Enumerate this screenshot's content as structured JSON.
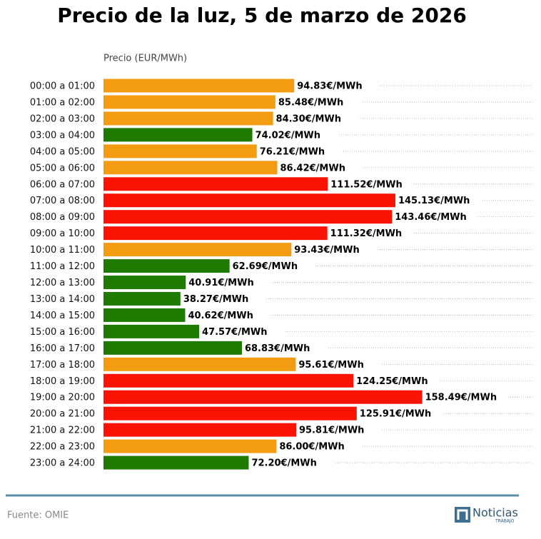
{
  "chart_data": {
    "type": "bar",
    "orientation": "horizontal",
    "title": "Precio de la luz, 5 de marzo de 2026",
    "x_label": "Precio (EUR/MWh)",
    "categories": [
      "00:00 a 01:00",
      "01:00 a 02:00",
      "02:00 a 03:00",
      "03:00 a 04:00",
      "04:00 a 05:00",
      "05:00 a 06:00",
      "06:00 a 07:00",
      "07:00 a 08:00",
      "08:00 a 09:00",
      "09:00 a 10:00",
      "10:00 a 11:00",
      "11:00 a 12:00",
      "12:00 a 13:00",
      "13:00 a 14:00",
      "14:00 a 15:00",
      "15:00 a 16:00",
      "16:00 a 17:00",
      "17:00 a 18:00",
      "18:00 a 19:00",
      "19:00 a 20:00",
      "20:00 a 21:00",
      "21:00 a 22:00",
      "22:00 a 23:00",
      "23:00 a 24:00"
    ],
    "values": [
      94.83,
      85.48,
      84.3,
      74.02,
      76.21,
      86.42,
      111.52,
      145.13,
      143.46,
      111.32,
      93.43,
      62.69,
      40.91,
      38.27,
      40.62,
      47.57,
      68.83,
      95.61,
      124.25,
      158.49,
      125.91,
      95.81,
      86.0,
      72.2
    ],
    "value_labels": [
      "94.83€/MWh",
      "85.48€/MWh",
      "84.30€/MWh",
      "74.02€/MWh",
      "76.21€/MWh",
      "86.42€/MWh",
      "111.52€/MWh",
      "145.13€/MWh",
      "143.46€/MWh",
      "111.32€/MWh",
      "93.43€/MWh",
      "62.69€/MWh",
      "40.91€/MWh",
      "38.27€/MWh",
      "40.62€/MWh",
      "47.57€/MWh",
      "68.83€/MWh",
      "95.61€/MWh",
      "124.25€/MWh",
      "158.49€/MWh",
      "125.91€/MWh",
      "95.81€/MWh",
      "86.00€/MWh",
      "72.20€/MWh"
    ],
    "colors": [
      "#f39c12",
      "#f39c12",
      "#f39c12",
      "#1e7b00",
      "#f39c12",
      "#f39c12",
      "#fa1205",
      "#fa1205",
      "#fa1205",
      "#fa1205",
      "#f39c12",
      "#1e7b00",
      "#1e7b00",
      "#1e7b00",
      "#1e7b00",
      "#1e7b00",
      "#1e7b00",
      "#f39c12",
      "#fa1205",
      "#fa1205",
      "#fa1205",
      "#fa1205",
      "#f39c12",
      "#1e7b00"
    ],
    "xlim": [
      0,
      214
    ],
    "source": "Fuente: OMIE",
    "logo": {
      "name": "Noticias",
      "sub": "TRABAJO"
    }
  }
}
